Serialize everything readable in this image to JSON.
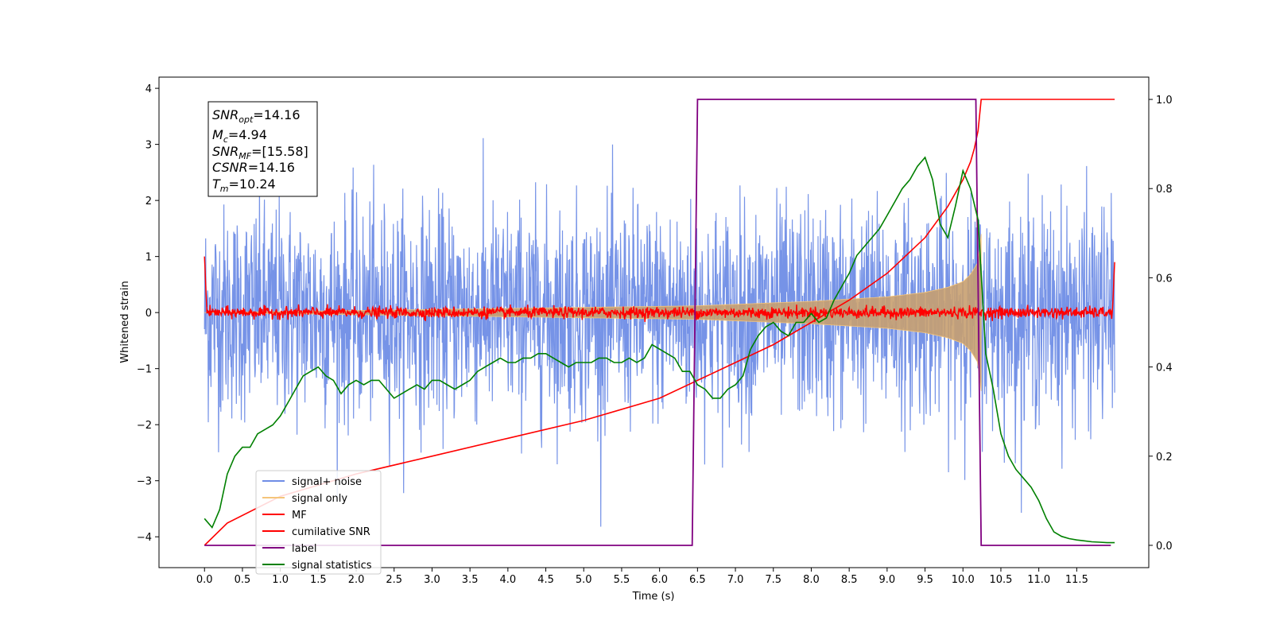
{
  "chart_data": {
    "type": "line",
    "xlabel": "Time (s)",
    "ylabel": "Whitened strain",
    "xlim": [
      -0.6,
      12.45
    ],
    "ylim": [
      -4.55,
      4.2
    ],
    "ylim_right": [
      -0.05,
      1.05
    ],
    "x_ticks": [
      "0.0",
      "0.5",
      "1.0",
      "1.5",
      "2.0",
      "2.5",
      "3.0",
      "3.5",
      "4.0",
      "4.5",
      "5.0",
      "5.5",
      "6.0",
      "6.5",
      "7.0",
      "7.5",
      "8.0",
      "8.5",
      "9.0",
      "9.5",
      "10.0",
      "10.5",
      "11.0",
      "11.5"
    ],
    "y_ticks": [
      "4",
      "3",
      "2",
      "1",
      "0",
      "−1",
      "−2",
      "−3",
      "−4"
    ],
    "y_ticks_right": [
      "1.0",
      "0.8",
      "0.6",
      "0.4",
      "0.2",
      "0.0"
    ],
    "grid": false,
    "legend_position": "lower-left",
    "legend": [
      "signal+ noise",
      "signal only",
      "MF",
      "cumilative SNR",
      "label",
      "signal statistics"
    ],
    "annotation": {
      "snr_opt": {
        "base": "SNR",
        "sub": "opt",
        "value": "=14.16"
      },
      "mc": {
        "base": "M",
        "sub": "c",
        "value": "=4.94"
      },
      "snr_mf": {
        "base": "SNR",
        "sub": "MF",
        "value": "=[15.58]"
      },
      "csnr": {
        "base": "CSNR",
        "value": "=14.16"
      },
      "tm": {
        "base": "T",
        "sub": "m",
        "value": "=10.24"
      }
    },
    "series": [
      {
        "name": "signal+ noise",
        "color": "#6f8de6",
        "axis": "left",
        "t_start": 0.0,
        "t_end": 12.0,
        "description": "noise band roughly within ±2.3, peaks to ±3.8"
      },
      {
        "name": "signal only",
        "color": "#f5c57a",
        "axis": "left",
        "envelope": {
          "t": [
            0.0,
            6.5,
            8.0,
            9.0,
            9.5,
            9.8,
            10.0,
            10.1,
            10.2,
            10.24
          ],
          "amp": [
            0.0,
            0.12,
            0.2,
            0.28,
            0.36,
            0.45,
            0.55,
            0.68,
            0.9,
            1.4
          ]
        }
      },
      {
        "name": "MF",
        "color": "#ff0000",
        "axis": "left",
        "t_start": 0.0,
        "t_end": 12.0,
        "description": "near 0 with ±0.15 fluctuation, edge spikes to ~1.0"
      },
      {
        "name": "cumilative SNR",
        "color": "#ff0000",
        "axis": "right",
        "x": [
          0.0,
          0.3,
          1.0,
          2.0,
          3.0,
          4.0,
          5.0,
          6.0,
          7.0,
          7.5,
          8.0,
          8.5,
          9.0,
          9.5,
          9.8,
          10.0,
          10.1,
          10.15,
          10.2,
          10.24,
          12.0
        ],
        "y": [
          0.0,
          0.05,
          0.11,
          0.16,
          0.2,
          0.24,
          0.28,
          0.33,
          0.41,
          0.45,
          0.5,
          0.55,
          0.61,
          0.69,
          0.76,
          0.82,
          0.86,
          0.89,
          0.93,
          1.0,
          1.0
        ]
      },
      {
        "name": "label",
        "color": "#800080",
        "axis": "right",
        "x": [
          0.0,
          6.43,
          6.5,
          10.17,
          10.24,
          11.95
        ],
        "y": [
          0.0,
          0.0,
          1.0,
          1.0,
          0.0,
          0.0
        ]
      },
      {
        "name": "signal statistics",
        "color": "#008000",
        "axis": "right",
        "x": [
          0.0,
          0.1,
          0.2,
          0.3,
          0.4,
          0.5,
          0.6,
          0.7,
          0.8,
          0.9,
          1.0,
          1.1,
          1.2,
          1.3,
          1.4,
          1.5,
          1.6,
          1.7,
          1.8,
          1.9,
          2.0,
          2.1,
          2.2,
          2.3,
          2.4,
          2.5,
          2.6,
          2.7,
          2.8,
          2.9,
          3.0,
          3.1,
          3.2,
          3.3,
          3.4,
          3.5,
          3.6,
          3.7,
          3.8,
          3.9,
          4.0,
          4.1,
          4.2,
          4.3,
          4.4,
          4.5,
          4.6,
          4.7,
          4.8,
          4.9,
          5.0,
          5.1,
          5.2,
          5.3,
          5.4,
          5.5,
          5.6,
          5.7,
          5.8,
          5.9,
          6.0,
          6.1,
          6.2,
          6.3,
          6.4,
          6.5,
          6.6,
          6.7,
          6.8,
          6.9,
          7.0,
          7.1,
          7.2,
          7.3,
          7.4,
          7.5,
          7.6,
          7.7,
          7.8,
          7.9,
          8.0,
          8.1,
          8.2,
          8.3,
          8.4,
          8.5,
          8.6,
          8.7,
          8.8,
          8.9,
          9.0,
          9.1,
          9.2,
          9.3,
          9.4,
          9.5,
          9.6,
          9.7,
          9.8,
          9.9,
          10.0,
          10.1,
          10.2,
          10.3,
          10.4,
          10.5,
          10.6,
          10.7,
          10.8,
          10.9,
          11.0,
          11.1,
          11.2,
          11.3,
          11.4,
          11.5,
          11.6,
          11.7,
          11.8,
          11.9,
          12.0
        ],
        "y": [
          0.06,
          0.04,
          0.08,
          0.16,
          0.2,
          0.22,
          0.22,
          0.25,
          0.26,
          0.27,
          0.29,
          0.32,
          0.35,
          0.38,
          0.39,
          0.4,
          0.38,
          0.37,
          0.34,
          0.36,
          0.37,
          0.36,
          0.37,
          0.37,
          0.35,
          0.33,
          0.34,
          0.35,
          0.36,
          0.35,
          0.37,
          0.37,
          0.36,
          0.35,
          0.36,
          0.37,
          0.39,
          0.4,
          0.41,
          0.42,
          0.41,
          0.41,
          0.42,
          0.42,
          0.43,
          0.43,
          0.42,
          0.41,
          0.4,
          0.41,
          0.41,
          0.41,
          0.42,
          0.42,
          0.41,
          0.41,
          0.42,
          0.41,
          0.42,
          0.45,
          0.44,
          0.43,
          0.42,
          0.39,
          0.39,
          0.36,
          0.35,
          0.33,
          0.33,
          0.35,
          0.36,
          0.38,
          0.44,
          0.47,
          0.49,
          0.5,
          0.48,
          0.47,
          0.5,
          0.5,
          0.52,
          0.5,
          0.51,
          0.55,
          0.58,
          0.61,
          0.65,
          0.67,
          0.69,
          0.71,
          0.74,
          0.77,
          0.8,
          0.82,
          0.85,
          0.87,
          0.82,
          0.72,
          0.69,
          0.76,
          0.84,
          0.8,
          0.73,
          0.43,
          0.35,
          0.25,
          0.2,
          0.17,
          0.15,
          0.13,
          0.1,
          0.06,
          0.03,
          0.02,
          0.015,
          0.012,
          0.01,
          0.008,
          0.007,
          0.006,
          0.006
        ]
      }
    ]
  }
}
